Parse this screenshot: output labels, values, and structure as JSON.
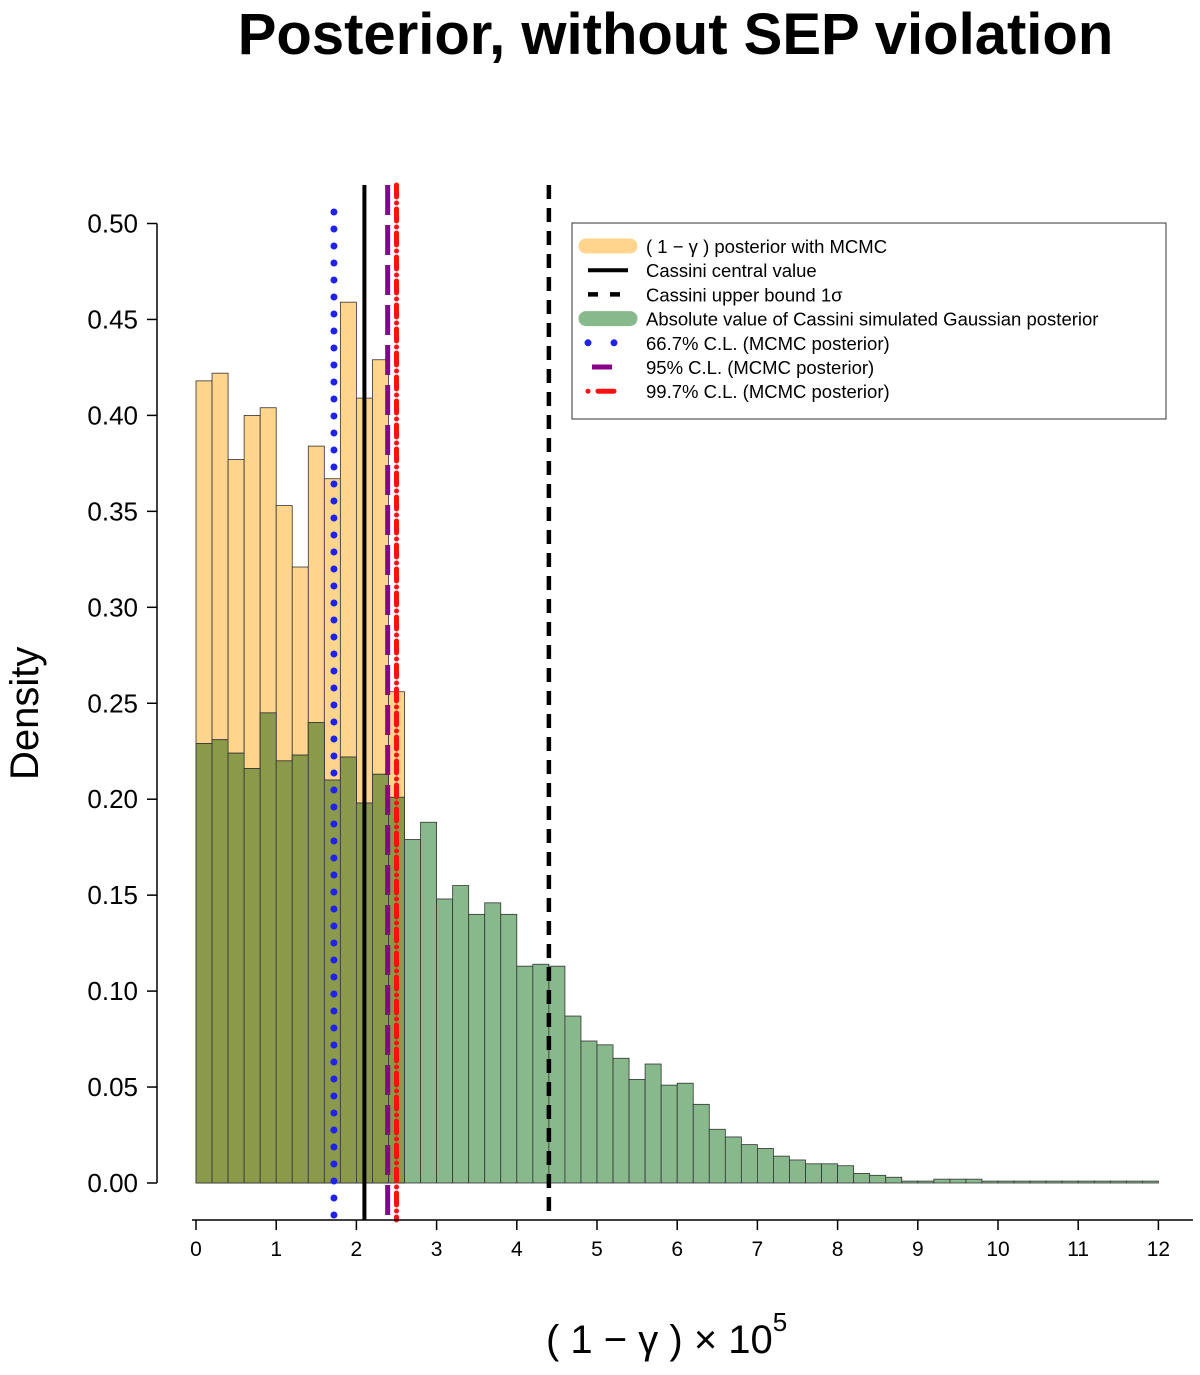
{
  "chart_data": {
    "type": "bar",
    "title": "Posterior, without SEP violation",
    "ylabel": "Density",
    "xlabel": {
      "prefix": "( 1 − γ ) × 10",
      "exponent": "5"
    },
    "xlim": [
      0,
      12
    ],
    "ylim": [
      0,
      0.5
    ],
    "xticks": [
      "0",
      "1",
      "2",
      "3",
      "4",
      "5",
      "6",
      "7",
      "8",
      "9",
      "10",
      "11",
      "12"
    ],
    "yticks": [
      "0.00",
      "0.05",
      "0.10",
      "0.15",
      "0.20",
      "0.25",
      "0.30",
      "0.35",
      "0.40",
      "0.45",
      "0.50"
    ],
    "bin_width": 0.2,
    "series": [
      {
        "name": "( 1 − γ ) posterior with MCMC",
        "color": "#FFD48C",
        "start": 0.0,
        "values": [
          0.418,
          0.422,
          0.377,
          0.4,
          0.404,
          0.353,
          0.321,
          0.384,
          0.367,
          0.459,
          0.409,
          0.429,
          0.256
        ]
      },
      {
        "name": "Absolute value of Cassini simulated Gaussian posterior",
        "color": "#87B98C",
        "start": 0.0,
        "values": [
          0.229,
          0.231,
          0.224,
          0.216,
          0.245,
          0.22,
          0.223,
          0.24,
          0.21,
          0.222,
          0.198,
          0.213,
          0.201,
          0.179,
          0.188,
          0.148,
          0.155,
          0.14,
          0.146,
          0.14,
          0.113,
          0.114,
          0.113,
          0.087,
          0.074,
          0.072,
          0.065,
          0.054,
          0.062,
          0.051,
          0.052,
          0.041,
          0.028,
          0.024,
          0.02,
          0.018,
          0.014,
          0.012,
          0.01,
          0.01,
          0.009,
          0.005,
          0.004,
          0.003,
          0.001,
          0.001,
          0.002,
          0.002,
          0.002,
          0.001,
          0.001,
          0.001,
          0.001,
          0.001,
          0.001,
          0.001,
          0.001,
          0.001,
          0.001,
          0.001
        ]
      }
    ],
    "vlines": [
      {
        "name": "Cassini central value",
        "x": 2.1,
        "style": "solid",
        "color": "#000000"
      },
      {
        "name": "Cassini upper bound  1σ",
        "x": 4.4,
        "style": "dashed",
        "color": "#000000"
      },
      {
        "name": "66.7% C.L. (MCMC posterior)",
        "x": 1.72,
        "style": "dotted",
        "color": "#1F22E8"
      },
      {
        "name": "95% C.L. (MCMC posterior)",
        "x": 2.39,
        "style": "longdash",
        "color": "#8B008B"
      },
      {
        "name": "99.7% C.L. (MCMC posterior)",
        "x": 2.5,
        "style": "dotdash",
        "color": "#FF1010"
      }
    ],
    "legend": {
      "position": "top-right",
      "entries": [
        {
          "label": "( 1 − γ ) posterior with MCMC",
          "kind": "fill",
          "color": "#FFD48C"
        },
        {
          "label": "Cassini central value",
          "kind": "solid",
          "color": "#000000"
        },
        {
          "label": "Cassini upper bound  1σ",
          "kind": "dashed",
          "color": "#000000"
        },
        {
          "label": "Absolute value of Cassini simulated Gaussian posterior",
          "kind": "fill",
          "color": "#87B98C"
        },
        {
          "label": "66.7% C.L. (MCMC posterior)",
          "kind": "dotted",
          "color": "#1F22E8"
        },
        {
          "label": "95% C.L. (MCMC posterior)",
          "kind": "longdash",
          "color": "#8B008B"
        },
        {
          "label": "99.7% C.L. (MCMC posterior)",
          "kind": "dotdash",
          "color": "#FF1010"
        }
      ]
    }
  }
}
